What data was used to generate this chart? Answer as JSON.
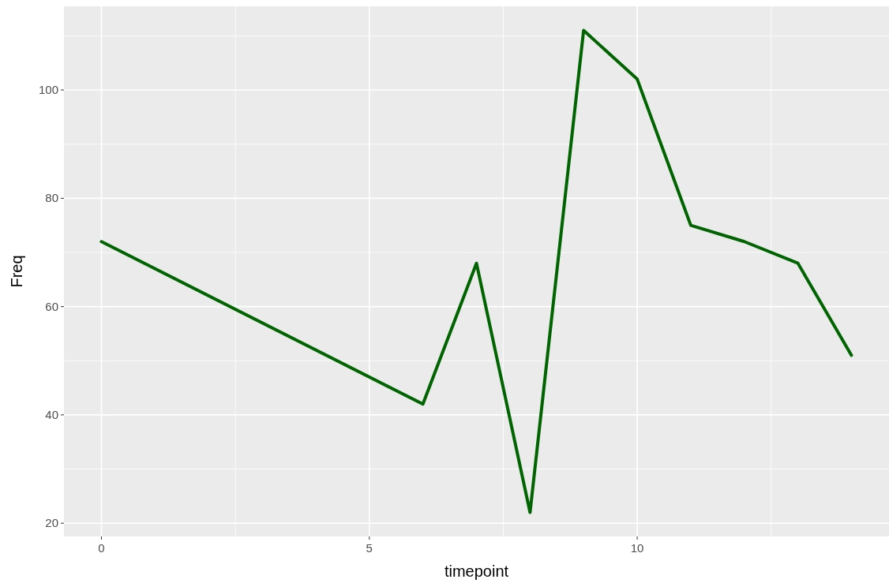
{
  "chart_data": {
    "type": "line",
    "xlabel": "timepoint",
    "ylabel": "Freq",
    "x": [
      0,
      6,
      7,
      8,
      9,
      10,
      11,
      12,
      13,
      14
    ],
    "series": [
      {
        "color": "#006400",
        "values": [
          72,
          42,
          68,
          22,
          111,
          102,
          75,
          72,
          68,
          51
        ]
      }
    ],
    "xlim": [
      -0.7,
      14.7
    ],
    "ylim": [
      17.55,
      115.45
    ],
    "xticks": [
      0,
      5,
      10
    ],
    "yticks": [
      20,
      40,
      60,
      80,
      100
    ],
    "grid": true,
    "line_style": "solid"
  }
}
